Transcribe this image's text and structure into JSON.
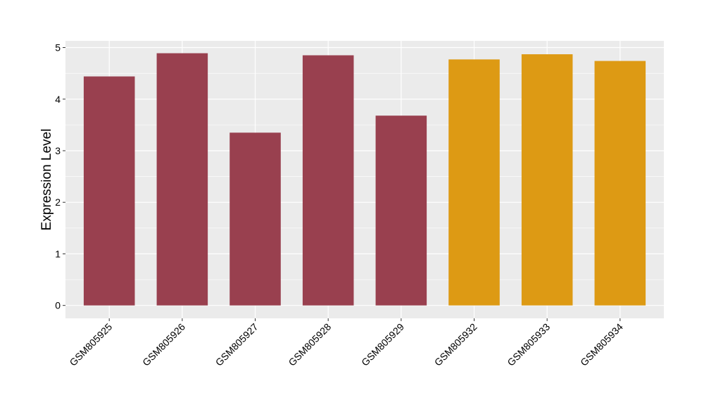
{
  "chart_data": {
    "type": "bar",
    "categories": [
      "GSM805925",
      "GSM805926",
      "GSM805927",
      "GSM805928",
      "GSM805929",
      "GSM805932",
      "GSM805933",
      "GSM805934"
    ],
    "values": [
      4.44,
      4.89,
      3.35,
      4.85,
      3.68,
      4.77,
      4.87,
      4.74
    ],
    "bar_colors": [
      "#99404f",
      "#99404f",
      "#99404f",
      "#99404f",
      "#99404f",
      "#dd9a14",
      "#dd9a14",
      "#dd9a14"
    ],
    "title": "",
    "xlabel": "",
    "ylabel": "Expression Level",
    "ylim": [
      -0.25,
      5.13
    ],
    "yticks": [
      0,
      1,
      2,
      3,
      4,
      5
    ],
    "grid": true,
    "panel_background": "#ebebeb",
    "grid_color": "#ffffff"
  }
}
